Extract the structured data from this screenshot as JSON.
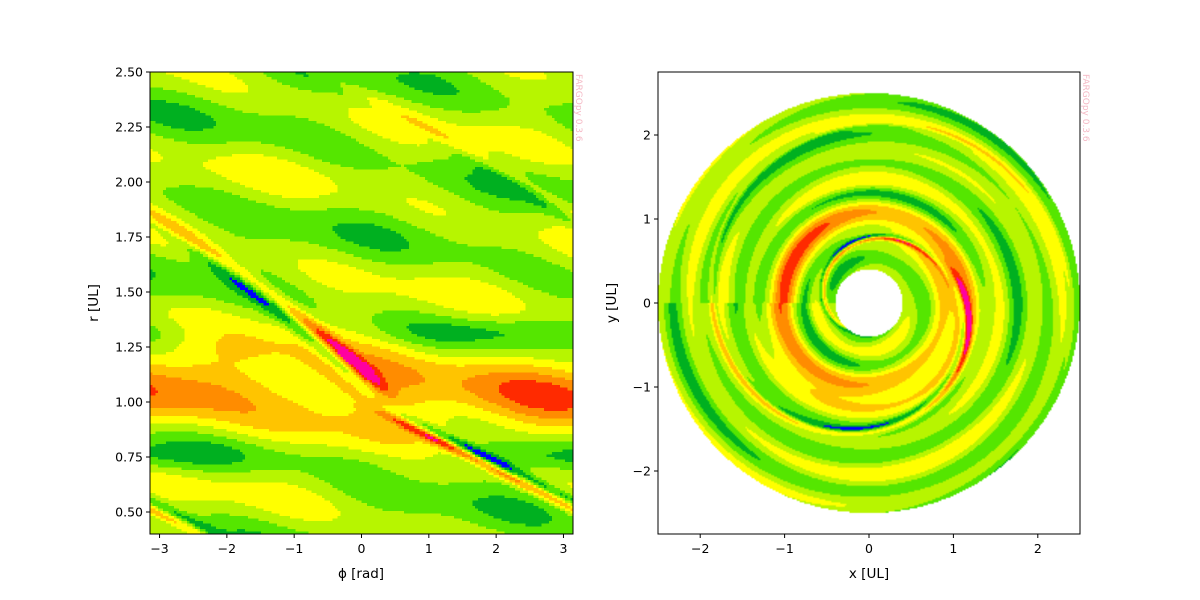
{
  "chart_data": [
    {
      "type": "heatmap",
      "title": "",
      "xlabel": "ϕ [rad]",
      "ylabel": "r [UL]",
      "xlim": [
        -3.1416,
        3.1416
      ],
      "ylim": [
        0.4,
        2.5
      ],
      "xticks": [
        -3,
        -2,
        -1,
        0,
        1,
        2,
        3
      ],
      "xtick_labels": [
        "−3",
        "−2",
        "−1",
        "0",
        "1",
        "2",
        "3"
      ],
      "yticks": [
        0.5,
        0.75,
        1.0,
        1.25,
        1.5,
        1.75,
        2.0,
        2.25,
        2.5
      ],
      "ytick_labels": [
        "0.50",
        "0.75",
        "1.00",
        "1.25",
        "1.50",
        "1.75",
        "2.00",
        "2.25",
        "2.50"
      ],
      "watermark": "FARGOpy 0.3.6",
      "colormap": [
        "#0000ff",
        "#00b020",
        "#55e600",
        "#b7f500",
        "#ffff00",
        "#ffc400",
        "#ff8c00",
        "#ff2a00",
        "#ff00a0"
      ],
      "planet": {
        "r": 1.0,
        "phi": 0.0
      },
      "grid": false,
      "legend": "none"
    },
    {
      "type": "heatmap",
      "title": "",
      "xlabel": "x [UL]",
      "ylabel": "y [UL]",
      "xlim": [
        -2.5,
        2.5
      ],
      "ylim": [
        -2.75,
        2.75
      ],
      "xticks": [
        -2,
        -1,
        0,
        1,
        2
      ],
      "xtick_labels": [
        "−2",
        "−1",
        "0",
        "1",
        "2"
      ],
      "yticks": [
        -2,
        -1,
        0,
        1,
        2
      ],
      "ytick_labels": [
        "−2",
        "−1",
        "0",
        "1",
        "2"
      ],
      "r_range": [
        0.4,
        2.5
      ],
      "watermark": "FARGOpy 0.3.6",
      "planet": {
        "x": 1.0,
        "y": 0.0
      },
      "grid": false,
      "legend": "none"
    }
  ]
}
